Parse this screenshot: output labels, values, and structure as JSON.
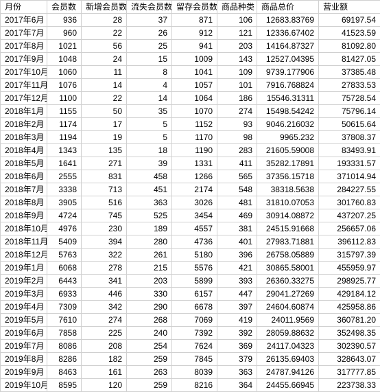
{
  "table": {
    "columns": [
      "月份",
      "会员数",
      "新增会员数",
      "流失会员数",
      "留存会员数",
      "商品种类",
      "商品总价",
      "营业额"
    ],
    "rows": [
      [
        "2017年6月",
        "936",
        "28",
        "37",
        "871",
        "106",
        "12683.83769",
        "69197.54"
      ],
      [
        "2017年7月",
        "960",
        "22",
        "26",
        "912",
        "121",
        "12336.67402",
        "41523.59"
      ],
      [
        "2017年8月",
        "1021",
        "56",
        "25",
        "941",
        "203",
        "14164.87327",
        "81092.80"
      ],
      [
        "2017年9月",
        "1048",
        "24",
        "15",
        "1009",
        "143",
        "12527.04395",
        "81427.05"
      ],
      [
        "2017年10月",
        "1060",
        "11",
        "8",
        "1041",
        "109",
        "9739.177906",
        "37385.48"
      ],
      [
        "2017年11月",
        "1076",
        "14",
        "4",
        "1057",
        "101",
        "7916.768824",
        "27833.53"
      ],
      [
        "2017年12月",
        "1100",
        "22",
        "14",
        "1064",
        "186",
        "15546.31311",
        "75728.54"
      ],
      [
        "2018年1月",
        "1155",
        "50",
        "35",
        "1070",
        "274",
        "15498.54242",
        "75796.14"
      ],
      [
        "2018年2月",
        "1174",
        "17",
        "5",
        "1152",
        "93",
        "9046.216032",
        "50615.64"
      ],
      [
        "2018年3月",
        "1194",
        "19",
        "5",
        "1170",
        "98",
        "9965.232",
        "37808.37"
      ],
      [
        "2018年4月",
        "1343",
        "135",
        "18",
        "1190",
        "283",
        "21605.59008",
        "83493.91"
      ],
      [
        "2018年5月",
        "1641",
        "271",
        "39",
        "1331",
        "411",
        "35282.17891",
        "193331.57"
      ],
      [
        "2018年6月",
        "2555",
        "831",
        "458",
        "1266",
        "565",
        "37356.15718",
        "371014.94"
      ],
      [
        "2018年7月",
        "3338",
        "713",
        "451",
        "2174",
        "548",
        "38318.5638",
        "284227.55"
      ],
      [
        "2018年8月",
        "3905",
        "516",
        "363",
        "3026",
        "481",
        "31810.07053",
        "301760.83"
      ],
      [
        "2018年9月",
        "4724",
        "745",
        "525",
        "3454",
        "469",
        "30914.08872",
        "437207.25"
      ],
      [
        "2018年10月",
        "4976",
        "230",
        "189",
        "4557",
        "381",
        "24515.91668",
        "256657.06"
      ],
      [
        "2018年11月",
        "5409",
        "394",
        "280",
        "4736",
        "401",
        "27983.71881",
        "396112.83"
      ],
      [
        "2018年12月",
        "5763",
        "322",
        "261",
        "5180",
        "396",
        "26758.05889",
        "315797.39"
      ],
      [
        "2019年1月",
        "6068",
        "278",
        "215",
        "5576",
        "421",
        "30865.58001",
        "455959.97"
      ],
      [
        "2019年2月",
        "6443",
        "341",
        "203",
        "5899",
        "393",
        "26360.33275",
        "298925.77"
      ],
      [
        "2019年3月",
        "6933",
        "446",
        "330",
        "6157",
        "447",
        "29041.27269",
        "429184.12"
      ],
      [
        "2019年4月",
        "7309",
        "342",
        "290",
        "6678",
        "397",
        "24604.60874",
        "425958.86"
      ],
      [
        "2019年5月",
        "7610",
        "274",
        "268",
        "7069",
        "419",
        "24011.9569",
        "360781.20"
      ],
      [
        "2019年6月",
        "7858",
        "225",
        "240",
        "7392",
        "392",
        "28059.88632",
        "352498.35"
      ],
      [
        "2019年7月",
        "8086",
        "208",
        "254",
        "7624",
        "369",
        "24117.04323",
        "302390.57"
      ],
      [
        "2019年8月",
        "8286",
        "182",
        "259",
        "7845",
        "379",
        "26135.69403",
        "328643.07"
      ],
      [
        "2019年9月",
        "8463",
        "161",
        "263",
        "8039",
        "363",
        "24787.94126",
        "317777.85"
      ],
      [
        "2019年10月",
        "8595",
        "120",
        "259",
        "8216",
        "364",
        "24455.66945",
        "223738.33"
      ]
    ]
  },
  "style": {
    "border_color": "#d0d0d0",
    "font_size": 12,
    "header_bg": "#ffffff"
  }
}
